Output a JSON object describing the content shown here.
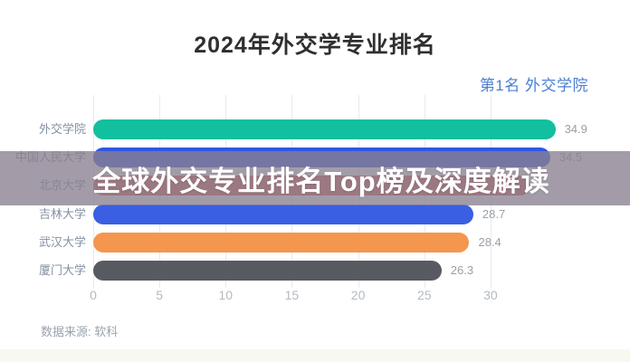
{
  "page": {
    "rank_note": "第1名 外交学院",
    "source": "数据来源: 软科"
  },
  "overlay_banner": {
    "text": "全球外交专业排名Top榜及深度解读",
    "bg_color": "#89808f",
    "bg_opacity": 0.78,
    "text_color": "#ffffff"
  },
  "chart_data": {
    "type": "bar",
    "orientation": "horizontal",
    "title": "2024年外交学专业排名",
    "categories": [
      "外交学院",
      "中国人民大学",
      "北京大学",
      "吉林大学",
      "武汉大学",
      "厦门大学"
    ],
    "values": [
      34.9,
      34.5,
      33.0,
      28.7,
      28.4,
      26.3
    ],
    "value_labels": [
      "34.9",
      "34.5",
      "",
      "28.7",
      "28.4",
      "26.3"
    ],
    "bar_colors": [
      "#12bf9e",
      "#3156e2",
      "#db5b52",
      "#3a5fe2",
      "#f5964f",
      "#585a62"
    ],
    "x_ticks": [
      0,
      5,
      10,
      15,
      20,
      25,
      30
    ],
    "xlim": [
      0,
      36.5
    ],
    "grid": true,
    "legend": "none",
    "accent_colors": {
      "title_text": "#2f2f2f",
      "rank_note_text": "#4b7fd2",
      "category_label": "#8590a3",
      "value_label": "#9aa0a6",
      "tick_label": "#b4bac2",
      "gridline": "#e9eaee"
    }
  }
}
